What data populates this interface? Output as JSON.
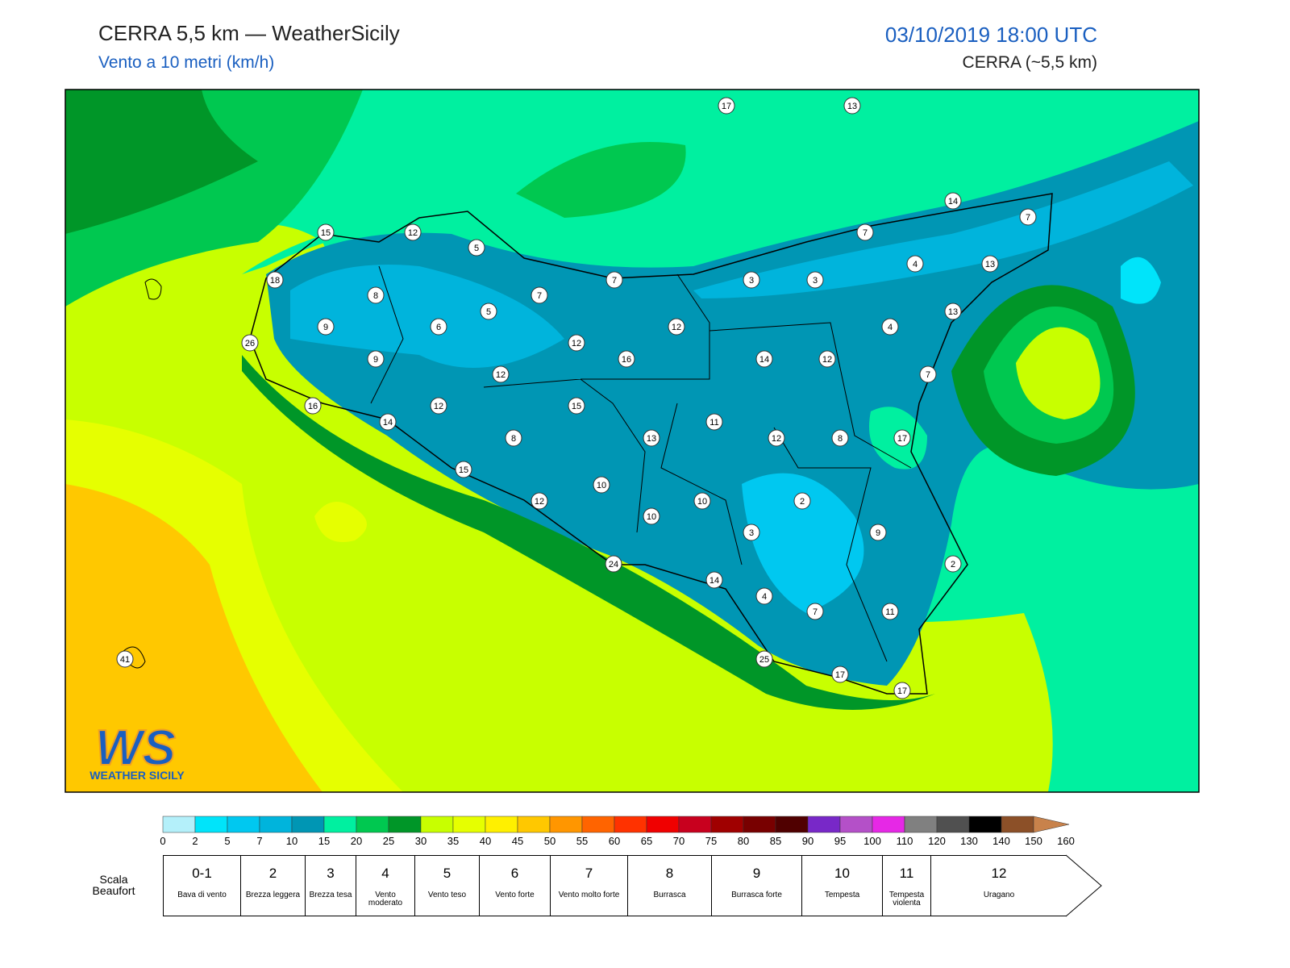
{
  "header": {
    "title": "CERRA 5,5 km — WeatherSicily",
    "subtitle": "Vento a 10 metri (km/h)",
    "date": "03/10/2019 18:00 UTC",
    "model": "CERRA (~5,5 km)"
  },
  "map": {
    "stations": [
      17,
      13,
      14,
      7,
      15,
      12,
      5,
      7,
      18,
      7,
      3,
      3,
      4,
      13,
      8,
      7,
      5,
      13,
      9,
      6,
      12,
      4,
      26,
      12,
      9,
      16,
      14,
      12,
      12,
      7,
      16,
      12,
      15,
      14,
      11,
      8,
      13,
      12,
      8,
      17,
      15,
      10,
      12,
      10,
      2,
      10,
      3,
      9,
      24,
      2,
      14,
      4,
      7,
      11,
      41,
      25,
      17,
      17
    ]
  },
  "logo": {
    "mark": "WS",
    "name": "WEATHER SICILY"
  },
  "colorbar": {
    "ticks": [
      0,
      2,
      5,
      7,
      10,
      15,
      20,
      25,
      30,
      35,
      40,
      45,
      50,
      55,
      60,
      65,
      70,
      75,
      80,
      85,
      90,
      95,
      100,
      110,
      120,
      130,
      140,
      150,
      160
    ],
    "colors": [
      "#b4f0fa",
      "#00e4fa",
      "#00c8f0",
      "#00b4dc",
      "#0096b4",
      "#00f0a0",
      "#00c850",
      "#009628",
      "#c8ff00",
      "#e6ff00",
      "#fff000",
      "#ffc800",
      "#ff9600",
      "#ff6400",
      "#ff3200",
      "#f00000",
      "#c8001e",
      "#a00000",
      "#780000",
      "#500000",
      "#7828c8",
      "#b450c8",
      "#e628e6",
      "#808080",
      "#505050",
      "#000000",
      "#8c5028",
      "#c8824b"
    ]
  },
  "beaufort": {
    "label": "Scala Beaufort",
    "levels": [
      {
        "force": "0-1",
        "name": "Bava di vento"
      },
      {
        "force": "2",
        "name": "Brezza leggera"
      },
      {
        "force": "3",
        "name": "Brezza tesa"
      },
      {
        "force": "4",
        "name": "Vento moderato"
      },
      {
        "force": "5",
        "name": "Vento teso"
      },
      {
        "force": "6",
        "name": "Vento forte"
      },
      {
        "force": "7",
        "name": "Vento molto forte"
      },
      {
        "force": "8",
        "name": "Burrasca"
      },
      {
        "force": "9",
        "name": "Burrasca forte"
      },
      {
        "force": "10",
        "name": "Tempesta"
      },
      {
        "force": "11",
        "name": "Tempesta violenta"
      },
      {
        "force": "12",
        "name": "Uragano"
      }
    ]
  }
}
